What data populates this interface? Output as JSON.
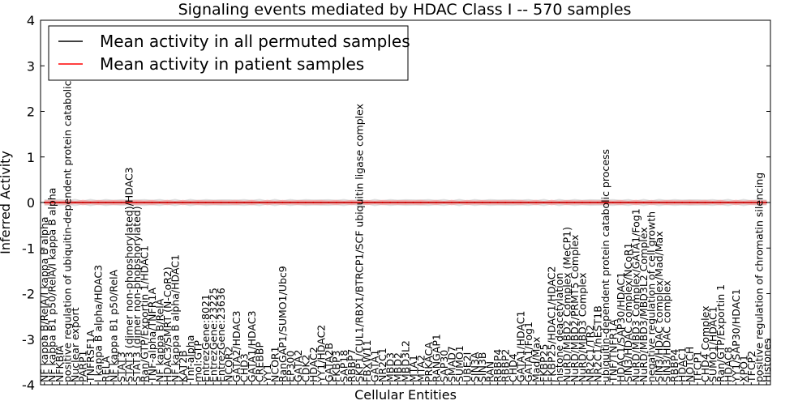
{
  "chart_data": {
    "type": "line",
    "title": "Signaling events mediated by HDAC Class I -- 570 samples",
    "xlabel": "Cellular Entities",
    "ylabel": "Inferred Activity",
    "ylim": [
      -4,
      4
    ],
    "yticks": [
      -4,
      -3,
      -2,
      -1,
      0,
      1,
      2,
      3,
      4
    ],
    "grid": false,
    "legend_position": "top-left",
    "series": [
      {
        "name": "Mean activity in all permuted samples",
        "color": "#000000",
        "band_color": "#c8c8c8",
        "value": 0.0,
        "band": 0.08
      },
      {
        "name": "Mean activity in patient samples",
        "color": "#ff0000",
        "band_color": "#f2a0a0",
        "value": 0.0,
        "band": 0.06
      }
    ],
    "categories": [
      "NF kappa B/RelA/I kappa B alpha",
      "NF kappa B1 p50/RelA/I kappa B alpha",
      "NFKBIA",
      "positive regulation of ubiquitin-dependent protein catabolic process",
      "Nuclear export",
      "PARP1",
      "TNFRSF1A",
      "I kappa B alpha/HDAC3",
      "RELA",
      "NF kappa B1 p50/RelA",
      "STAT3",
      "STAT3 (dimer non-phopshorylated)/HDAC3",
      "STAT3 (dimer non-phopshorylated)",
      "Ran/GTP/Exportin 1/HDAC1",
      "TNF-alpha/TNFR1A",
      "NF kappa B/RelA",
      "HDAC3/SMRT (N-CoR2)",
      "NF kappa B alpha/HDAC1",
      "KAT2B",
      "Tnf-alpha",
      "mol:GTP",
      "EntrezGene:8021",
      "EntrezGene:23225",
      "EntrezGene:23636",
      "NCOR2",
      "GATA2/HDAC3",
      "CHD3",
      "GATA1/HDAC3",
      "CREBBP",
      "YY1",
      "NCOR1",
      "RanGAP1/SUMO1/Ubc9",
      "EP300",
      "GATA2",
      "CDK2",
      "HDAC2",
      "YY1/HDAC2",
      "GATA2B",
      "FKBP3",
      "SAP18",
      "RBBP7",
      "SKP1/CUL1/RBX1/BTRCP1/SCF ubiquitin ligase complex",
      "FBXW11",
      "GATA1",
      "NR2C1",
      "MBD3",
      "MBD2",
      "MBD3L2",
      "MTA1",
      "MTA2",
      "PRKACA",
      "RANGAP1",
      "SAP30",
      "SMAD7",
      "SUMO1",
      "UBE2I",
      "SIN3A",
      "SIN3B",
      "RAN",
      "RBBP4",
      "RBBP2",
      "CHD4",
      "GATA1/HDAC1",
      "GATA1/Fog1",
      "Mad/Max",
      "FKBP25",
      "FKBP25/HDAC1/HDAC2",
      "histone deacetylation",
      "NuRD/MBD2 Complex (MeCP1)",
      "NuRD/MBD2/PRMT5 Complex",
      "NuRD/MBD3 Complex",
      "NR2C1/TR2",
      "NR2C1/hEST1B",
      "ubiquitin-dependent protein catabolic process",
      "TNF/TNFR1A",
      "HDAC1/SAP30/HDAC1",
      "SIN3/HDAC complex/NCoR1",
      "NuRD/MBD3 Complex/GATA1/Fog1",
      "NuRD/MBD3/MBD3L2 Complex",
      "negative regulation of cell growth",
      "SIN3/HDAC complex/Mad/Max",
      "SIN3/HDAC complex",
      "RBBP4",
      "HDAC1",
      "NOTCH",
      "TFCP1",
      "CHD4 Complex",
      "SUMO1/HDAC1",
      "Ran/GTP/Exportin 1",
      "HDAC8",
      "YY1/SAP30/HDAC1",
      "XPO1",
      "TFCP2",
      "positive regulation of chromatin silencing",
      "Histones"
    ]
  }
}
